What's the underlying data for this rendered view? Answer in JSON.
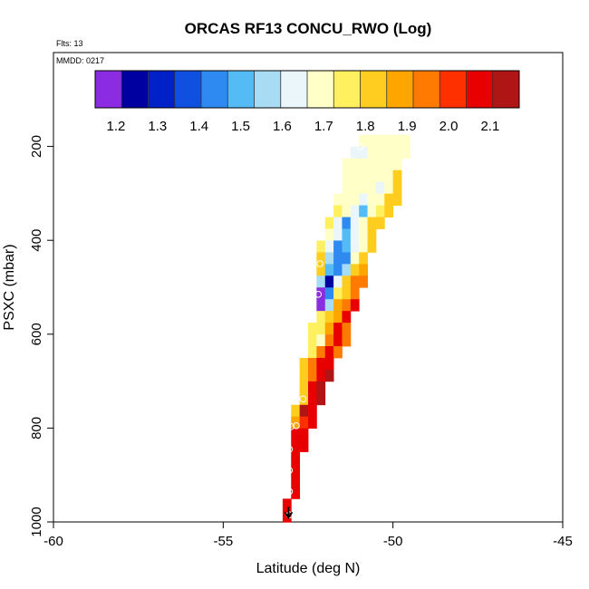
{
  "chart_data": {
    "type": "heatmap",
    "title": "ORCAS RF13 CONCU_RWO (Log)",
    "flts_label": "Flts: 13",
    "date_label": "MMDD: 0217",
    "xlabel": "Latitude (deg N)",
    "ylabel": "PSXC (mbar)",
    "xlim": [
      -60,
      -45
    ],
    "ylim": [
      1000,
      0
    ],
    "xticks": [
      -60,
      -55,
      -50,
      -45
    ],
    "yticks": [
      200,
      400,
      600,
      800,
      1000
    ],
    "colorbar": {
      "position": "top",
      "min": 1.15,
      "max": 2.17,
      "ticks": [
        "1.2",
        "1.3",
        "1.4",
        "1.5",
        "1.6",
        "1.7",
        "1.8",
        "1.9",
        "2.0",
        "2.1"
      ],
      "colors": [
        "#8B2BE2",
        "#0000A0",
        "#0020C8",
        "#1050E0",
        "#2E8AF0",
        "#55BBF5",
        "#A8DCF5",
        "#EAF6FA",
        "#FFFFC8",
        "#FFF060",
        "#FFCC20",
        "#FFA500",
        "#FF7A00",
        "#FF3000",
        "#E80000",
        "#B01515"
      ]
    },
    "cell_size": {
      "dlat": 0.25,
      "dp": 25
    },
    "cells": [
      {
        "lat": -51.0,
        "p": 188,
        "v": 1.72
      },
      {
        "lat": -50.75,
        "p": 188,
        "v": 1.72
      },
      {
        "lat": -50.5,
        "p": 188,
        "v": 1.72
      },
      {
        "lat": -50.25,
        "p": 188,
        "v": 1.72
      },
      {
        "lat": -50.0,
        "p": 188,
        "v": 1.72
      },
      {
        "lat": -49.75,
        "p": 188,
        "v": 1.72
      },
      {
        "lat": -51.0,
        "p": 213,
        "v": 1.62
      },
      {
        "lat": -51.25,
        "p": 213,
        "v": 1.62
      },
      {
        "lat": -50.75,
        "p": 213,
        "v": 1.72
      },
      {
        "lat": -50.5,
        "p": 213,
        "v": 1.72
      },
      {
        "lat": -50.25,
        "p": 213,
        "v": 1.72
      },
      {
        "lat": -50.0,
        "p": 213,
        "v": 1.72
      },
      {
        "lat": -49.75,
        "p": 213,
        "v": 1.72
      },
      {
        "lat": -51.5,
        "p": 238,
        "v": 1.72
      },
      {
        "lat": -51.25,
        "p": 238,
        "v": 1.72
      },
      {
        "lat": -51.0,
        "p": 238,
        "v": 1.72
      },
      {
        "lat": -50.75,
        "p": 238,
        "v": 1.72
      },
      {
        "lat": -50.5,
        "p": 238,
        "v": 1.72
      },
      {
        "lat": -50.25,
        "p": 238,
        "v": 1.72
      },
      {
        "lat": -50.0,
        "p": 238,
        "v": 1.7
      },
      {
        "lat": -51.5,
        "p": 263,
        "v": 1.72
      },
      {
        "lat": -51.25,
        "p": 263,
        "v": 1.72
      },
      {
        "lat": -51.0,
        "p": 263,
        "v": 1.72
      },
      {
        "lat": -50.75,
        "p": 263,
        "v": 1.72
      },
      {
        "lat": -50.5,
        "p": 263,
        "v": 1.72
      },
      {
        "lat": -50.25,
        "p": 263,
        "v": 1.72
      },
      {
        "lat": -50.0,
        "p": 263,
        "v": 1.8
      },
      {
        "lat": -51.5,
        "p": 288,
        "v": 1.72
      },
      {
        "lat": -51.25,
        "p": 288,
        "v": 1.72
      },
      {
        "lat": -51.0,
        "p": 288,
        "v": 1.72
      },
      {
        "lat": -50.75,
        "p": 288,
        "v": 1.72
      },
      {
        "lat": -50.5,
        "p": 288,
        "v": 1.62
      },
      {
        "lat": -50.25,
        "p": 288,
        "v": 1.72
      },
      {
        "lat": -50.0,
        "p": 288,
        "v": 1.85
      },
      {
        "lat": -51.75,
        "p": 313,
        "v": 1.72
      },
      {
        "lat": -51.5,
        "p": 313,
        "v": 1.72
      },
      {
        "lat": -51.25,
        "p": 313,
        "v": 1.72
      },
      {
        "lat": -51.0,
        "p": 313,
        "v": 1.62
      },
      {
        "lat": -50.75,
        "p": 313,
        "v": 1.72
      },
      {
        "lat": -50.5,
        "p": 313,
        "v": 1.72
      },
      {
        "lat": -50.25,
        "p": 313,
        "v": 1.8
      },
      {
        "lat": -50.0,
        "p": 313,
        "v": 1.85
      },
      {
        "lat": -51.75,
        "p": 338,
        "v": 1.73
      },
      {
        "lat": -51.5,
        "p": 338,
        "v": 1.72
      },
      {
        "lat": -51.25,
        "p": 338,
        "v": 1.62
      },
      {
        "lat": -51.0,
        "p": 338,
        "v": 1.5
      },
      {
        "lat": -50.75,
        "p": 338,
        "v": 1.72
      },
      {
        "lat": -50.5,
        "p": 338,
        "v": 1.75
      },
      {
        "lat": -50.25,
        "p": 338,
        "v": 1.85
      },
      {
        "lat": -52.0,
        "p": 363,
        "v": 1.75
      },
      {
        "lat": -51.75,
        "p": 363,
        "v": 1.6
      },
      {
        "lat": -51.5,
        "p": 363,
        "v": 1.45
      },
      {
        "lat": -51.25,
        "p": 363,
        "v": 1.6
      },
      {
        "lat": -51.0,
        "p": 363,
        "v": 1.72
      },
      {
        "lat": -50.75,
        "p": 363,
        "v": 1.82
      },
      {
        "lat": -50.5,
        "p": 363,
        "v": 1.85
      },
      {
        "lat": -52.0,
        "p": 388,
        "v": 1.72
      },
      {
        "lat": -51.75,
        "p": 388,
        "v": 1.6
      },
      {
        "lat": -51.5,
        "p": 388,
        "v": 1.5
      },
      {
        "lat": -51.25,
        "p": 388,
        "v": 1.6
      },
      {
        "lat": -51.0,
        "p": 388,
        "v": 1.72
      },
      {
        "lat": -50.75,
        "p": 388,
        "v": 1.85
      },
      {
        "lat": -52.25,
        "p": 413,
        "v": 1.75
      },
      {
        "lat": -52.0,
        "p": 413,
        "v": 1.6
      },
      {
        "lat": -51.75,
        "p": 413,
        "v": 1.45
      },
      {
        "lat": -51.5,
        "p": 413,
        "v": 1.5
      },
      {
        "lat": -51.25,
        "p": 413,
        "v": 1.6
      },
      {
        "lat": -51.0,
        "p": 413,
        "v": 1.72
      },
      {
        "lat": -50.75,
        "p": 413,
        "v": 1.85
      },
      {
        "lat": -52.25,
        "p": 438,
        "v": 1.85
      },
      {
        "lat": -52.0,
        "p": 438,
        "v": 1.55
      },
      {
        "lat": -51.75,
        "p": 438,
        "v": 1.45
      },
      {
        "lat": -51.5,
        "p": 438,
        "v": 1.45
      },
      {
        "lat": -51.25,
        "p": 438,
        "v": 1.72
      },
      {
        "lat": -51.0,
        "p": 438,
        "v": 1.85
      },
      {
        "lat": -52.25,
        "p": 463,
        "v": 1.8
      },
      {
        "lat": -52.0,
        "p": 463,
        "v": 1.5
      },
      {
        "lat": -51.75,
        "p": 463,
        "v": 1.45
      },
      {
        "lat": -51.5,
        "p": 463,
        "v": 1.55
      },
      {
        "lat": -51.25,
        "p": 463,
        "v": 1.8
      },
      {
        "lat": -51.0,
        "p": 463,
        "v": 1.88
      },
      {
        "lat": -52.25,
        "p": 488,
        "v": 1.55
      },
      {
        "lat": -52.0,
        "p": 488,
        "v": 1.25
      },
      {
        "lat": -51.75,
        "p": 488,
        "v": 1.6
      },
      {
        "lat": -51.5,
        "p": 488,
        "v": 1.82
      },
      {
        "lat": -51.25,
        "p": 488,
        "v": 1.95
      },
      {
        "lat": -51.0,
        "p": 488,
        "v": 1.95
      },
      {
        "lat": -52.25,
        "p": 513,
        "v": 1.17
      },
      {
        "lat": -52.0,
        "p": 513,
        "v": 1.45
      },
      {
        "lat": -51.75,
        "p": 513,
        "v": 1.75
      },
      {
        "lat": -51.5,
        "p": 513,
        "v": 1.85
      },
      {
        "lat": -51.25,
        "p": 513,
        "v": 1.95
      },
      {
        "lat": -52.25,
        "p": 538,
        "v": 1.17
      },
      {
        "lat": -52.0,
        "p": 538,
        "v": 1.55
      },
      {
        "lat": -51.75,
        "p": 538,
        "v": 1.88
      },
      {
        "lat": -51.5,
        "p": 538,
        "v": 1.95
      },
      {
        "lat": -51.25,
        "p": 538,
        "v": 2.05
      },
      {
        "lat": -52.25,
        "p": 563,
        "v": 1.75
      },
      {
        "lat": -52.0,
        "p": 563,
        "v": 1.8
      },
      {
        "lat": -51.75,
        "p": 563,
        "v": 1.9
      },
      {
        "lat": -51.5,
        "p": 563,
        "v": 2.05
      },
      {
        "lat": -52.5,
        "p": 588,
        "v": 1.78
      },
      {
        "lat": -52.25,
        "p": 588,
        "v": 1.75
      },
      {
        "lat": -52.0,
        "p": 588,
        "v": 1.9
      },
      {
        "lat": -51.75,
        "p": 588,
        "v": 2.08
      },
      {
        "lat": -51.5,
        "p": 588,
        "v": 1.95
      },
      {
        "lat": -52.5,
        "p": 613,
        "v": 1.75
      },
      {
        "lat": -52.25,
        "p": 613,
        "v": 1.72
      },
      {
        "lat": -52.0,
        "p": 613,
        "v": 1.95
      },
      {
        "lat": -51.75,
        "p": 613,
        "v": 2.08
      },
      {
        "lat": -51.5,
        "p": 613,
        "v": 1.95
      },
      {
        "lat": -52.5,
        "p": 638,
        "v": 1.75
      },
      {
        "lat": -52.25,
        "p": 638,
        "v": 1.92
      },
      {
        "lat": -52.0,
        "p": 638,
        "v": 2.08
      },
      {
        "lat": -51.75,
        "p": 638,
        "v": 1.95
      },
      {
        "lat": -52.75,
        "p": 663,
        "v": 1.85
      },
      {
        "lat": -52.5,
        "p": 663,
        "v": 1.95
      },
      {
        "lat": -52.25,
        "p": 663,
        "v": 2.05
      },
      {
        "lat": -52.0,
        "p": 663,
        "v": 2.08
      },
      {
        "lat": -52.75,
        "p": 688,
        "v": 1.85
      },
      {
        "lat": -52.5,
        "p": 688,
        "v": 1.95
      },
      {
        "lat": -52.25,
        "p": 688,
        "v": 2.05
      },
      {
        "lat": -52.0,
        "p": 688,
        "v": 2.15
      },
      {
        "lat": -52.75,
        "p": 713,
        "v": 1.82
      },
      {
        "lat": -52.5,
        "p": 713,
        "v": 2.08
      },
      {
        "lat": -52.25,
        "p": 713,
        "v": 2.15
      },
      {
        "lat": -52.75,
        "p": 738,
        "v": 1.85
      },
      {
        "lat": -52.5,
        "p": 738,
        "v": 2.08
      },
      {
        "lat": -52.25,
        "p": 738,
        "v": 2.15
      },
      {
        "lat": -53.0,
        "p": 763,
        "v": 1.85
      },
      {
        "lat": -52.75,
        "p": 763,
        "v": 2.12
      },
      {
        "lat": -52.5,
        "p": 763,
        "v": 2.08
      },
      {
        "lat": -53.0,
        "p": 788,
        "v": 1.88
      },
      {
        "lat": -52.75,
        "p": 788,
        "v": 2.0
      },
      {
        "lat": -52.5,
        "p": 788,
        "v": 2.08
      },
      {
        "lat": -53.0,
        "p": 813,
        "v": 2.08
      },
      {
        "lat": -52.75,
        "p": 813,
        "v": 2.1
      },
      {
        "lat": -53.0,
        "p": 838,
        "v": 2.08
      },
      {
        "lat": -52.75,
        "p": 838,
        "v": 2.1
      },
      {
        "lat": -53.0,
        "p": 863,
        "v": 2.08
      },
      {
        "lat": -53.0,
        "p": 888,
        "v": 2.08
      },
      {
        "lat": -53.0,
        "p": 913,
        "v": 2.08
      },
      {
        "lat": -53.0,
        "p": 938,
        "v": 2.08
      },
      {
        "lat": -53.25,
        "p": 963,
        "v": 2.08
      },
      {
        "lat": -53.25,
        "p": 988,
        "v": 2.08
      }
    ],
    "flight_track": [
      {
        "lat": -53.05,
        "p": 985
      },
      {
        "lat": -53.05,
        "p": 935
      },
      {
        "lat": -53.05,
        "p": 890
      },
      {
        "lat": -53.05,
        "p": 845
      },
      {
        "lat": -52.85,
        "p": 795
      },
      {
        "lat": -53.0,
        "p": 797
      },
      {
        "lat": -52.65,
        "p": 738
      },
      {
        "lat": -52.2,
        "p": 515
      },
      {
        "lat": -52.15,
        "p": 450
      },
      {
        "lat": -50.95,
        "p": 200
      }
    ]
  }
}
